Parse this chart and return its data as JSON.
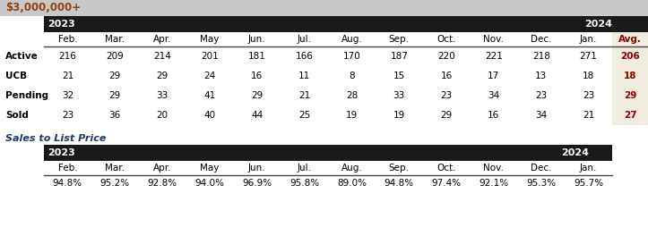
{
  "title": "$3,000,000+",
  "title_bg": "#c8c8c8",
  "title_color": "#8b4513",
  "year_header_bg": "#1a1a1a",
  "year_header_color": "#ffffff",
  "avg_bg": "#f0ece0",
  "avg_color": "#8b0000",
  "data_color": "#000000",
  "row_label_color": "#000000",
  "months": [
    "Feb.",
    "Mar.",
    "Apr.",
    "May",
    "Jun.",
    "Jul.",
    "Aug.",
    "Sep.",
    "Oct.",
    "Nov.",
    "Dec.",
    "Jan.",
    "Avg."
  ],
  "stl_months": [
    "Feb.",
    "Mar.",
    "Apr.",
    "May",
    "Jun.",
    "Jul.",
    "Aug.",
    "Sep.",
    "Oct.",
    "Nov.",
    "Dec.",
    "Jan."
  ],
  "year_2023_label": "2023",
  "year_2024_label": "2024",
  "rows": [
    {
      "label": "Active",
      "values": [
        216,
        209,
        214,
        201,
        181,
        166,
        170,
        187,
        220,
        221,
        218,
        271,
        206
      ]
    },
    {
      "label": "UCB",
      "values": [
        21,
        29,
        29,
        24,
        16,
        11,
        8,
        15,
        16,
        17,
        13,
        18,
        18
      ]
    },
    {
      "label": "Pending",
      "values": [
        32,
        29,
        33,
        41,
        29,
        21,
        28,
        33,
        23,
        34,
        23,
        23,
        29
      ]
    },
    {
      "label": "Sold",
      "values": [
        23,
        36,
        20,
        40,
        44,
        25,
        19,
        19,
        29,
        16,
        34,
        21,
        27
      ]
    }
  ],
  "stl_title": "Sales to List Price",
  "stl_title_color": "#1f3864",
  "stl_values": [
    "94.8%",
    "95.2%",
    "92.8%",
    "94.0%",
    "96.9%",
    "95.8%",
    "89.0%",
    "94.8%",
    "97.4%",
    "92.1%",
    "95.3%",
    "95.7%"
  ],
  "fig_w": 7.23,
  "fig_h": 2.73,
  "dpi": 100
}
